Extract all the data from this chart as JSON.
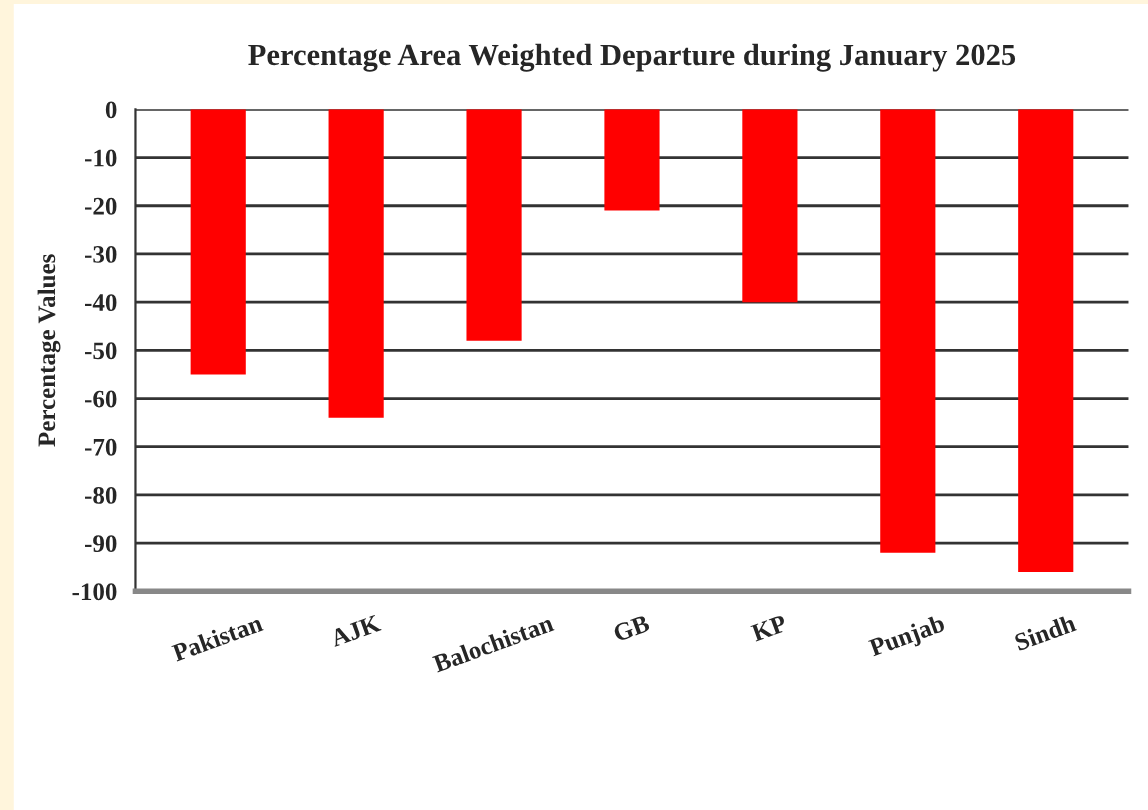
{
  "chart_data": {
    "type": "bar",
    "title": "Percentage Area Weighted Departure during January 2025",
    "ylabel": "Percentage Values",
    "categories": [
      "Pakistan",
      "AJK",
      "Balochistan",
      "GB",
      "KP",
      "Punjab",
      "Sindh"
    ],
    "values": [
      -55,
      -64,
      -48,
      -21,
      -40,
      -92,
      -96
    ],
    "color": "#ff0000",
    "ylim": [
      -100,
      0
    ],
    "yticks": [
      -100,
      -90,
      -80,
      -70,
      -60,
      -50,
      -40,
      -30,
      -20,
      -10,
      0
    ],
    "grid": "y"
  }
}
